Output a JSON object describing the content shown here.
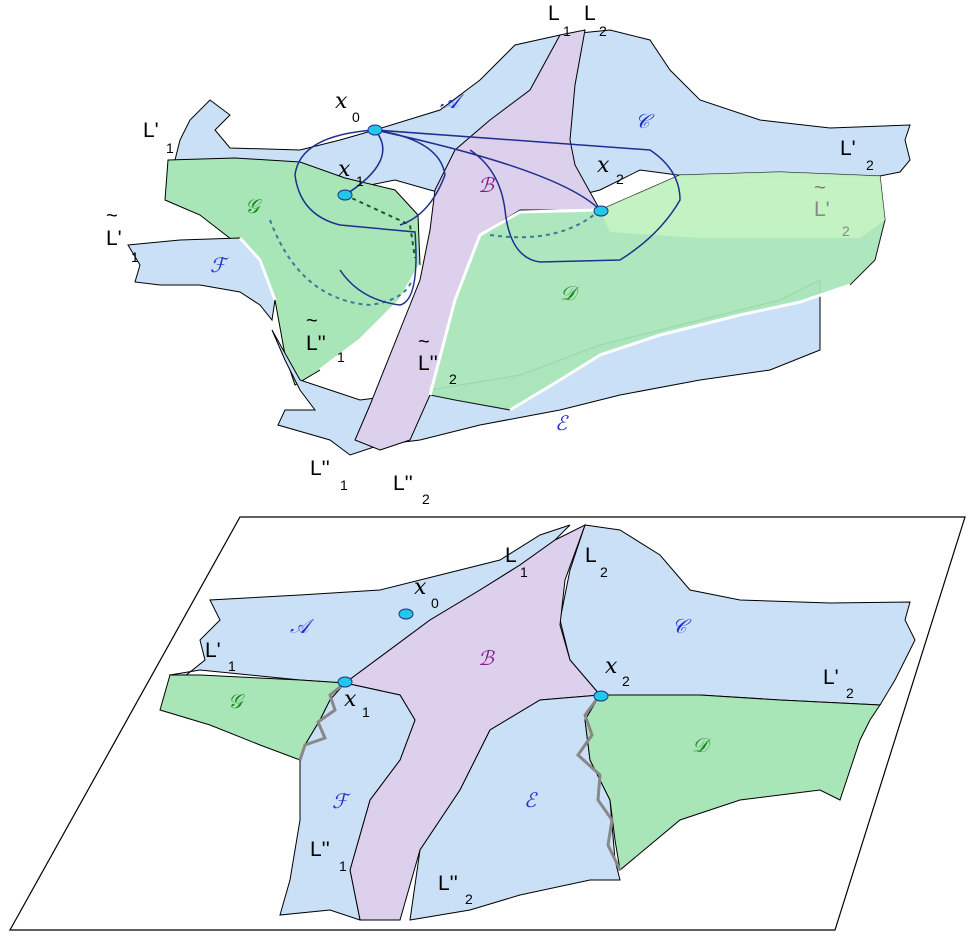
{
  "colors": {
    "blue_region": "#c9e0f7",
    "purple_region": "#dcd0ec",
    "green_region": "#a8e6b8",
    "light_green": "#c8f5c4",
    "path_blue": "#1f2f8f",
    "point_cyan": "#22c8e8",
    "region_label_blue": "#2030d0",
    "region_label_purple": "#8a1a8a",
    "region_label_green": "#1a8a1a"
  },
  "top": {
    "regions": {
      "A": "𝒜",
      "B": "ℬ",
      "C": "𝒞",
      "D": "𝒟",
      "E": "ℰ",
      "F": "ℱ",
      "G": "𝒢"
    },
    "points": {
      "x0": "x",
      "x0_sub": "0",
      "x1": "x",
      "x1_sub": "1",
      "x2": "x",
      "x2_sub": "2"
    },
    "lines": {
      "L1": "L",
      "L1_sub": "1",
      "L2": "L",
      "L2_sub": "2",
      "Lp1": "L'",
      "Lp1_sub": "1",
      "Lp2": "L'",
      "Lp2_sub": "2",
      "Lpp1": "L''",
      "Lpp1_sub": "1",
      "Lpp2": "L''",
      "Lpp2_sub": "2",
      "tLp1": "L'",
      "tLp1_sub": "1",
      "tLp2": "L'",
      "tLp2_sub": "2",
      "tLpp1": "L''",
      "tLpp1_sub": "1",
      "tLpp2": "L''",
      "tLpp2_sub": "2",
      "tilde": "~"
    }
  },
  "bottom": {
    "regions": {
      "A": "𝒜",
      "B": "ℬ",
      "C": "𝒞",
      "D": "𝒟",
      "E": "ℰ",
      "F": "ℱ",
      "G": "𝒢"
    },
    "points": {
      "x0": "x",
      "x0_sub": "0",
      "x1": "x",
      "x1_sub": "1",
      "x2": "x",
      "x2_sub": "2"
    },
    "lines": {
      "L1": "L",
      "L1_sub": "1",
      "L2": "L",
      "L2_sub": "2",
      "Lp1": "L'",
      "Lp1_sub": "1",
      "Lp2": "L'",
      "Lp2_sub": "2",
      "Lpp1": "L''",
      "Lpp1_sub": "1",
      "Lpp2": "L''",
      "Lpp2_sub": "2"
    }
  }
}
